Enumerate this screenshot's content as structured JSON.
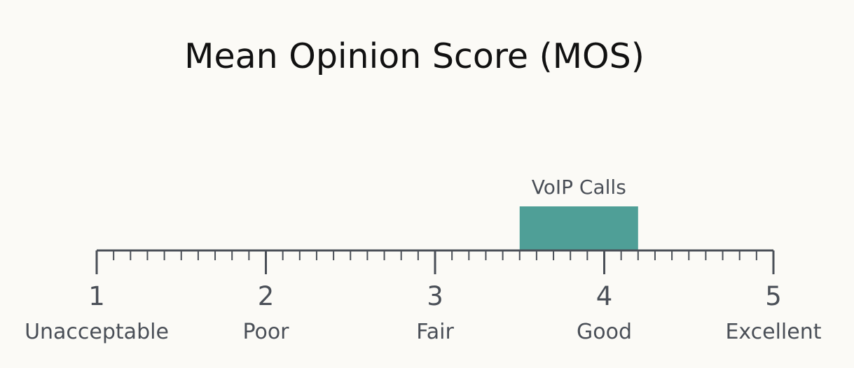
{
  "chart_data": {
    "type": "bar",
    "title": "Mean Opinion Score (MOS)",
    "xlim": [
      1,
      5
    ],
    "minor_tick_step": 0.1,
    "grid": false,
    "ticks": [
      {
        "value": 1,
        "label": "1",
        "rating": "Unacceptable"
      },
      {
        "value": 2,
        "label": "2",
        "rating": "Poor"
      },
      {
        "value": 3,
        "label": "3",
        "rating": "Fair"
      },
      {
        "value": 4,
        "label": "4",
        "rating": "Good"
      },
      {
        "value": 5,
        "label": "5",
        "rating": "Excellent"
      }
    ],
    "series": [
      {
        "name": "VoIP Calls",
        "range": [
          3.5,
          4.2
        ]
      }
    ]
  },
  "colors": {
    "bar": "#4f9f97",
    "axis": "#4a4f57",
    "text": "#4a4f57",
    "title": "#111111",
    "background": "#fbfaf6"
  }
}
